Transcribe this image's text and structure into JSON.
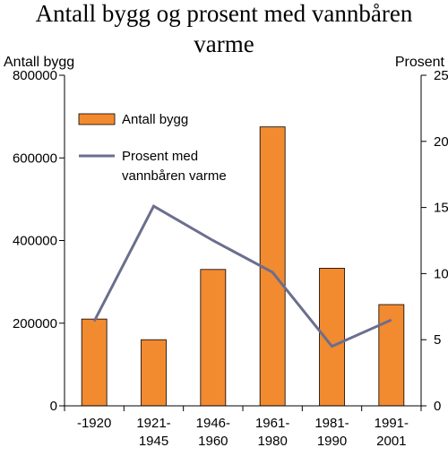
{
  "chart_data": {
    "type": "bar",
    "title_lines": [
      "Antall bygg og prosent med vannbåren",
      "varme"
    ],
    "y_left_label": "Antall bygg",
    "y_right_label": "Prosent",
    "categories": [
      [
        "-1920",
        ""
      ],
      [
        "1921-",
        "1945"
      ],
      [
        "1946-",
        "1960"
      ],
      [
        "1961-",
        "1980"
      ],
      [
        "1981-",
        "1990"
      ],
      [
        "1991-",
        "2001"
      ]
    ],
    "y_left_range": [
      0,
      800000
    ],
    "y_left_ticks": [
      "0",
      "200000",
      "400000",
      "600000",
      "800000"
    ],
    "y_right_range": [
      0,
      25
    ],
    "y_right_ticks": [
      "0",
      "5",
      "10",
      "15",
      "20",
      "25"
    ],
    "grid": false,
    "legend_placement": "top-left",
    "series": [
      {
        "name": "Antall bygg",
        "type": "bar",
        "axis": "left",
        "color": "#f28a30",
        "values": [
          210000,
          160000,
          330000,
          675000,
          333000,
          245000
        ]
      },
      {
        "name_lines": [
          "Prosent med",
          "vannbåren varme"
        ],
        "type": "line",
        "axis": "right",
        "color": "#6b6e8e",
        "values": [
          6.4,
          15.1,
          12.5,
          10.1,
          4.5,
          6.5
        ]
      }
    ]
  }
}
